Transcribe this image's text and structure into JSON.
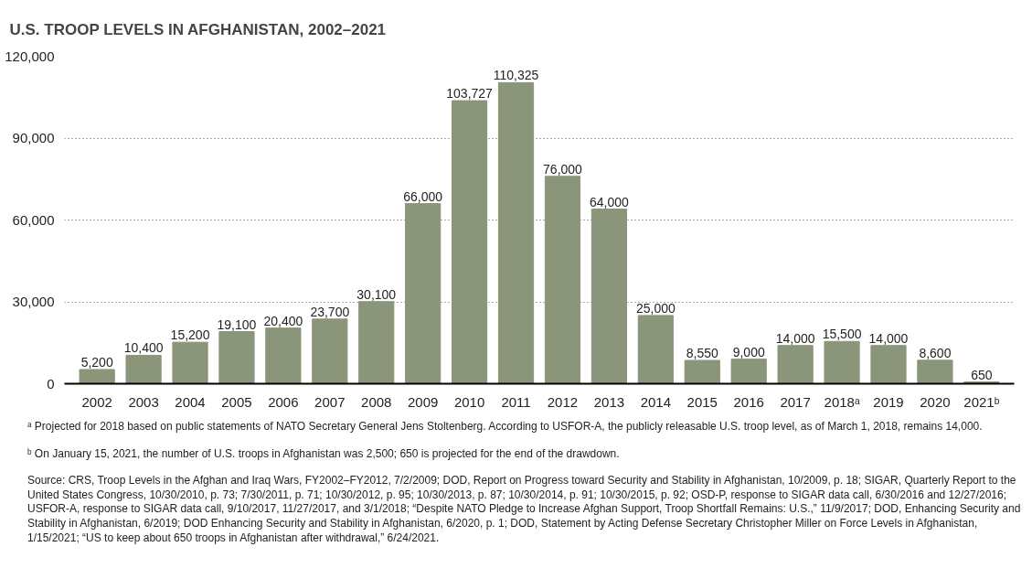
{
  "chart_data": {
    "type": "bar",
    "title": "U.S. TROOP LEVELS IN AFGHANISTAN, 2002–2021",
    "categories": [
      "2002",
      "2003",
      "2004",
      "2005",
      "2006",
      "2007",
      "2008",
      "2009",
      "2010",
      "2011",
      "2012",
      "2013",
      "2014",
      "2015",
      "2016",
      "2017",
      "2018ᵃ",
      "2019",
      "2020",
      "2021ᵇ"
    ],
    "values": [
      5200,
      10400,
      15200,
      19100,
      20400,
      23700,
      30100,
      66000,
      103727,
      110325,
      76000,
      64000,
      25000,
      8550,
      9000,
      14000,
      15500,
      14000,
      8600,
      650
    ],
    "color": "#8a957a",
    "ylim": [
      0,
      120000
    ],
    "yticks": [
      {
        "value": 0,
        "label": "0"
      },
      {
        "value": 30000,
        "label": "30,000"
      },
      {
        "value": 60000,
        "label": "60,000"
      },
      {
        "value": 90000,
        "label": "90,000"
      },
      {
        "value": 120000,
        "label": "120,000"
      }
    ],
    "grid": "y",
    "value_labels": [
      "5,200",
      "10,400",
      "15,200",
      "19,100",
      "20,400",
      "23,700",
      "30,100",
      "66,000",
      "103,727",
      "110,325",
      "76,000",
      "64,000",
      "25,000",
      "8,550",
      "9,000",
      "14,000",
      "15,500",
      "14,000",
      "8,600",
      "650"
    ],
    "annotations": [
      "ᵃ Projected for 2018 based on public statements of NATO Secretary General Jens Stoltenberg. According to USFOR-A, the publicly releasable U.S. troop level, as of March 1, 2018, remains 14,000.",
      "ᵇ On January 15, 2021, the number of U.S. troops in Afghanistan was 2,500; 650 is projected for the end of the drawdown.",
      "Source: CRS, Troop Levels in the Afghan and Iraq Wars, FY2002–FY2012, 7/2/2009; DOD, Report on Progress toward Security and Stability in Afghanistan, 10/2009, p. 18; SIGAR, Quarterly Report to the United States Congress, 10/30/2010, p. 73; 7/30/2011, p. 71; 10/30/2012, p. 95; 10/30/2013, p. 87; 10/30/2014, p. 91; 10/30/2015, p. 92; OSD-P, response to SIGAR data call, 6/30/2016 and 12/27/2016; USFOR-A, response to SIGAR data call, 9/10/2017, 11/27/2017, and 3/1/2018; “Despite NATO Pledge to Increase Afghan Support, Troop Shortfall Remains: U.S.,” 11/9/2017; DOD, Enhancing Security and Stability in Afghanistan, 6/2019; DOD Enhancing Security and Stability in Afghanistan, 6/2020, p. 1; DOD, Statement by Acting Defense Secretary Christopher Miller on Force Levels in Afghanistan, 1/15/2021; “US to keep about 650 troops in Afghanistan after withdrawal,” 6/24/2021."
    ]
  }
}
